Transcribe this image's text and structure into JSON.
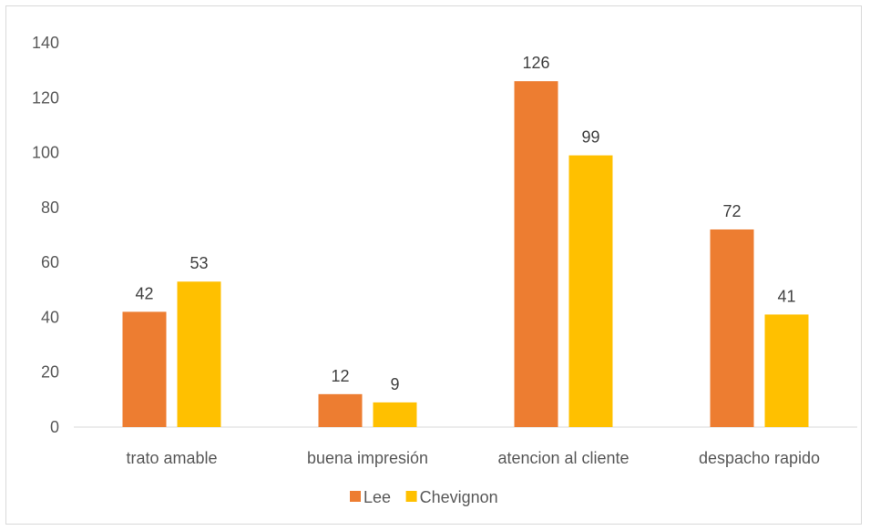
{
  "chart_data": {
    "type": "bar",
    "title": "",
    "xlabel": "",
    "ylabel": "",
    "categories": [
      "trato amable",
      "buena impresión",
      "atencion al cliente",
      "despacho rapido"
    ],
    "series": [
      {
        "name": "Lee",
        "values": [
          42,
          12,
          126,
          72
        ],
        "color": "#ED7D31"
      },
      {
        "name": "Chevignon",
        "values": [
          53,
          9,
          99,
          41
        ],
        "color": "#FFC000"
      }
    ],
    "ylim": [
      0,
      140
    ],
    "yticks": [
      0,
      20,
      40,
      60,
      80,
      100,
      120,
      140
    ],
    "grid": false,
    "data_labels": true,
    "legend_position": "bottom"
  }
}
